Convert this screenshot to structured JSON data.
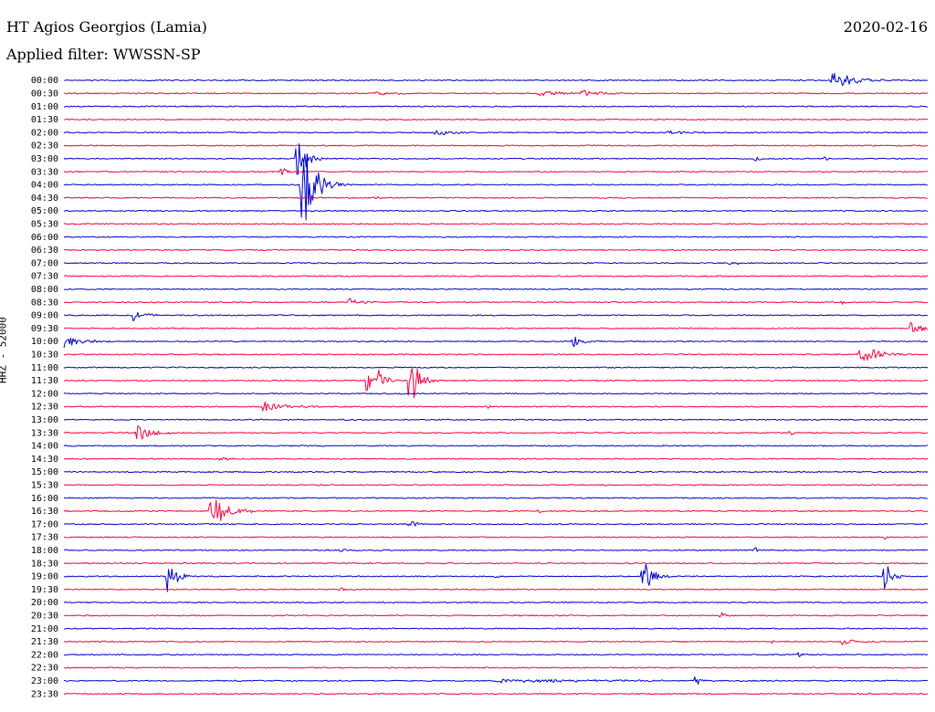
{
  "chart_data": {
    "type": "line",
    "title": "HT Agios Georgios (Lamia)",
    "date": "2020-02-16",
    "filter_label": "Applied filter:",
    "filter_value": "WWSSN-SP",
    "channel_label": "HHZ - 52000",
    "colors": {
      "blue": "#0000cc",
      "red": "#ff0040"
    },
    "rows": [
      {
        "label": "00:00",
        "color": "blue",
        "events": [
          {
            "x": 0.89,
            "amp": 10,
            "dur": 0.05
          }
        ]
      },
      {
        "label": "00:30",
        "color": "red",
        "events": [
          {
            "x": 0.36,
            "amp": 2,
            "dur": 0.05
          },
          {
            "x": 0.55,
            "amp": 3,
            "dur": 0.08
          },
          {
            "x": 0.6,
            "amp": 4,
            "dur": 0.04
          }
        ]
      },
      {
        "label": "01:00",
        "color": "blue",
        "events": []
      },
      {
        "label": "01:30",
        "color": "red",
        "events": []
      },
      {
        "label": "02:00",
        "color": "blue",
        "events": [
          {
            "x": 0.43,
            "amp": 3,
            "dur": 0.05
          },
          {
            "x": 0.7,
            "amp": 2,
            "dur": 0.05
          }
        ]
      },
      {
        "label": "02:30",
        "color": "red",
        "events": []
      },
      {
        "label": "03:00",
        "color": "blue",
        "events": [
          {
            "x": 0.27,
            "amp": 30,
            "dur": 0.02
          },
          {
            "x": 0.8,
            "amp": 4,
            "dur": 0.01
          },
          {
            "x": 0.88,
            "amp": 2,
            "dur": 0.03
          }
        ]
      },
      {
        "label": "03:30",
        "color": "red",
        "events": [
          {
            "x": 0.25,
            "amp": 7,
            "dur": 0.015
          }
        ]
      },
      {
        "label": "04:00",
        "color": "blue",
        "events": [
          {
            "x": 0.275,
            "amp": 60,
            "dur": 0.03
          }
        ]
      },
      {
        "label": "04:30",
        "color": "red",
        "events": [
          {
            "x": 0.36,
            "amp": 2,
            "dur": 0.02
          }
        ]
      },
      {
        "label": "05:00",
        "color": "blue",
        "events": []
      },
      {
        "label": "05:30",
        "color": "red",
        "events": []
      },
      {
        "label": "06:00",
        "color": "blue",
        "events": []
      },
      {
        "label": "06:30",
        "color": "red",
        "events": []
      },
      {
        "label": "07:00",
        "color": "blue",
        "events": [
          {
            "x": 0.77,
            "amp": 2,
            "dur": 0.04
          }
        ]
      },
      {
        "label": "07:30",
        "color": "red",
        "events": []
      },
      {
        "label": "08:00",
        "color": "blue",
        "events": []
      },
      {
        "label": "08:30",
        "color": "red",
        "events": [
          {
            "x": 0.33,
            "amp": 5,
            "dur": 0.025
          },
          {
            "x": 0.9,
            "amp": 4,
            "dur": 0.006
          }
        ]
      },
      {
        "label": "09:00",
        "color": "blue",
        "events": [
          {
            "x": 0.08,
            "amp": 7,
            "dur": 0.025
          }
        ]
      },
      {
        "label": "09:30",
        "color": "red",
        "events": [
          {
            "x": 0.98,
            "amp": 7,
            "dur": 0.03
          }
        ]
      },
      {
        "label": "10:00",
        "color": "blue",
        "events": [
          {
            "x": 0.0,
            "amp": 8,
            "dur": 0.05
          },
          {
            "x": 0.59,
            "amp": 6,
            "dur": 0.03
          }
        ]
      },
      {
        "label": "10:30",
        "color": "red",
        "events": [
          {
            "x": 0.92,
            "amp": 14,
            "dur": 0.04
          }
        ]
      },
      {
        "label": "11:00",
        "color": "blue",
        "events": []
      },
      {
        "label": "11:30",
        "color": "red",
        "events": [
          {
            "x": 0.35,
            "amp": 14,
            "dur": 0.015
          },
          {
            "x": 0.365,
            "amp": 15,
            "dur": 0.015
          },
          {
            "x": 0.4,
            "amp": 36,
            "dur": 0.02
          }
        ]
      },
      {
        "label": "12:00",
        "color": "blue",
        "events": []
      },
      {
        "label": "12:30",
        "color": "red",
        "events": [
          {
            "x": 0.23,
            "amp": 5,
            "dur": 0.07
          },
          {
            "x": 0.49,
            "amp": 3,
            "dur": 0.01
          }
        ]
      },
      {
        "label": "13:00",
        "color": "blue",
        "events": []
      },
      {
        "label": "13:30",
        "color": "red",
        "events": [
          {
            "x": 0.085,
            "amp": 12,
            "dur": 0.03
          },
          {
            "x": 0.84,
            "amp": 3,
            "dur": 0.01
          }
        ]
      },
      {
        "label": "14:00",
        "color": "blue",
        "events": []
      },
      {
        "label": "14:30",
        "color": "red",
        "events": [
          {
            "x": 0.18,
            "amp": 3,
            "dur": 0.03
          }
        ]
      },
      {
        "label": "15:00",
        "color": "blue",
        "events": []
      },
      {
        "label": "15:30",
        "color": "red",
        "events": []
      },
      {
        "label": "16:00",
        "color": "blue",
        "events": []
      },
      {
        "label": "16:30",
        "color": "red",
        "events": [
          {
            "x": 0.17,
            "amp": 20,
            "dur": 0.04
          },
          {
            "x": 0.55,
            "amp": 3,
            "dur": 0.005
          }
        ]
      },
      {
        "label": "17:00",
        "color": "blue",
        "events": [
          {
            "x": 0.4,
            "amp": 5,
            "dur": 0.02
          }
        ]
      },
      {
        "label": "17:30",
        "color": "red",
        "events": [
          {
            "x": 0.95,
            "amp": 3,
            "dur": 0.005
          }
        ]
      },
      {
        "label": "18:00",
        "color": "blue",
        "events": [
          {
            "x": 0.32,
            "amp": 3,
            "dur": 0.01
          },
          {
            "x": 0.8,
            "amp": 4,
            "dur": 0.008
          }
        ]
      },
      {
        "label": "18:30",
        "color": "red",
        "events": []
      },
      {
        "label": "19:00",
        "color": "blue",
        "events": [
          {
            "x": 0.12,
            "amp": 22,
            "dur": 0.02
          },
          {
            "x": 0.5,
            "amp": 4,
            "dur": 0.01
          },
          {
            "x": 0.67,
            "amp": 24,
            "dur": 0.02
          },
          {
            "x": 0.95,
            "amp": 20,
            "dur": 0.015
          }
        ]
      },
      {
        "label": "19:30",
        "color": "red",
        "events": [
          {
            "x": 0.32,
            "amp": 2,
            "dur": 0.02
          }
        ]
      },
      {
        "label": "20:00",
        "color": "blue",
        "events": []
      },
      {
        "label": "20:30",
        "color": "red",
        "events": [
          {
            "x": 0.76,
            "amp": 5,
            "dur": 0.015
          }
        ]
      },
      {
        "label": "21:00",
        "color": "blue",
        "events": []
      },
      {
        "label": "21:30",
        "color": "red",
        "events": [
          {
            "x": 0.82,
            "amp": 2,
            "dur": 0.01
          },
          {
            "x": 0.9,
            "amp": 4,
            "dur": 0.03
          }
        ]
      },
      {
        "label": "22:00",
        "color": "blue",
        "events": [
          {
            "x": 0.85,
            "amp": 4,
            "dur": 0.01
          }
        ]
      },
      {
        "label": "22:30",
        "color": "red",
        "events": []
      },
      {
        "label": "23:00",
        "color": "blue",
        "events": [
          {
            "x": 0.5,
            "amp": 2,
            "dur": 0.28
          },
          {
            "x": 0.73,
            "amp": 12,
            "dur": 0.01
          }
        ]
      },
      {
        "label": "23:30",
        "color": "red",
        "events": []
      }
    ]
  }
}
